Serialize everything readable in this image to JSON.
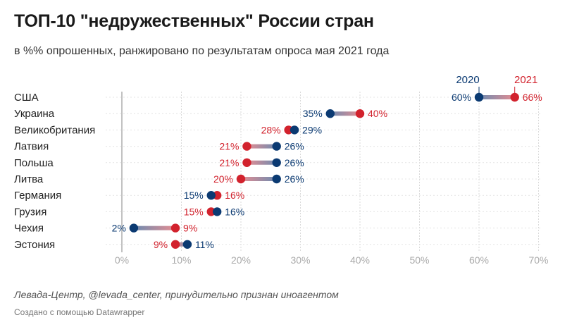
{
  "header": {
    "title": "ТОП-10 \"недружественных\" России стран",
    "subtitle": "в %% опрошенных, ранжировано по результатам опроса мая 2021 года"
  },
  "footer": {
    "source": "Левада-Центр, @levada_center, принудительно признан иноагентом",
    "credit": "Создано с помощью Datawrapper"
  },
  "colors": {
    "series_2020": "#0b3a72",
    "series_2021": "#d2222d",
    "grid": "#d9d9d9",
    "axis": "#999999",
    "tick_text": "#aaaaaa"
  },
  "chart_data": {
    "type": "dot-range",
    "title": "ТОП-10 \"недружественных\" России стран",
    "subtitle": "в %% опрошенных, ранжировано по результатам опроса мая 2021 года",
    "xlabel": "",
    "ylabel": "",
    "xlim": [
      0,
      70
    ],
    "ticks": [
      0,
      10,
      20,
      30,
      40,
      50,
      60,
      70
    ],
    "tick_labels": [
      "0%",
      "10%",
      "20%",
      "30%",
      "40%",
      "50%",
      "60%",
      "70%"
    ],
    "legend": [
      "2020",
      "2021"
    ],
    "categories": [
      "США",
      "Украина",
      "Великобритания",
      "Латвия",
      "Польша",
      "Литва",
      "Германия",
      "Грузия",
      "Чехия",
      "Эстония"
    ],
    "series": [
      {
        "name": "2020",
        "values": [
          60,
          35,
          29,
          26,
          26,
          26,
          15,
          16,
          2,
          11
        ],
        "labels": [
          "60%",
          "35%",
          "29%",
          "26%",
          "26%",
          "26%",
          "15%",
          "16%",
          "2%",
          "11%"
        ]
      },
      {
        "name": "2021",
        "values": [
          66,
          40,
          28,
          21,
          21,
          20,
          16,
          15,
          9,
          9
        ],
        "labels": [
          "66%",
          "40%",
          "28%",
          "21%",
          "21%",
          "20%",
          "16%",
          "15%",
          "9%",
          "9%"
        ]
      }
    ]
  }
}
